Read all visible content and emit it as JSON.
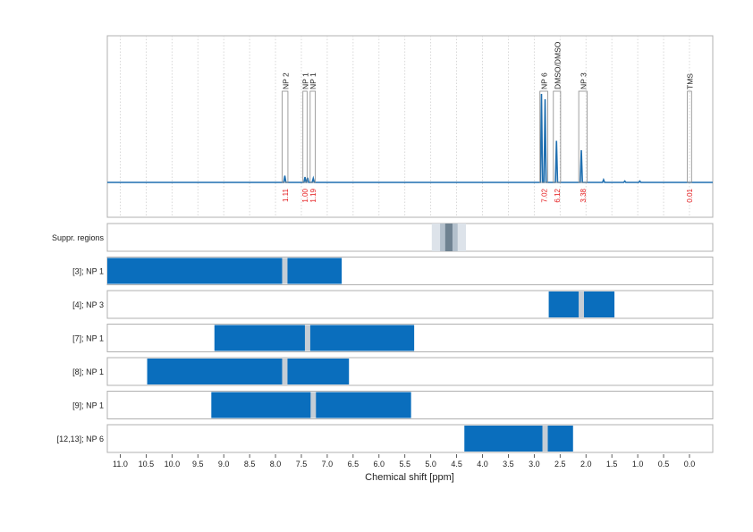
{
  "chart_data": {
    "type": "nmr-spectrum-with-range-tracks",
    "x_axis": {
      "label": "Chemical shift [ppm]",
      "lim": [
        11.25,
        -0.45
      ],
      "ticks": [
        11.0,
        10.5,
        10.0,
        9.5,
        9.0,
        8.5,
        8.0,
        7.5,
        7.0,
        6.5,
        6.0,
        5.5,
        5.0,
        4.5,
        4.0,
        3.5,
        3.0,
        2.5,
        2.0,
        1.5,
        1.0,
        0.5,
        0.0
      ],
      "tick_labels": [
        "11.0",
        "10.5",
        "10.0",
        "9.5",
        "9.0",
        "8.5",
        "8.0",
        "7.5",
        "7.0",
        "6.5",
        "6.0",
        "5.5",
        "5.0",
        "4.5",
        "4.0",
        "3.5",
        "3.0",
        "2.5",
        "2.0",
        "1.5",
        "1.0",
        "0.5",
        "0.0"
      ]
    },
    "spectrum": {
      "peaks": [
        {
          "ppm": 7.82,
          "height": 0.05
        },
        {
          "ppm": 7.43,
          "height": 0.04
        },
        {
          "ppm": 7.38,
          "height": 0.035
        },
        {
          "ppm": 7.27,
          "height": 0.03
        },
        {
          "ppm": 2.86,
          "height": 0.66
        },
        {
          "ppm": 2.79,
          "height": 0.62
        },
        {
          "ppm": 2.57,
          "height": 0.31
        },
        {
          "ppm": 2.09,
          "height": 0.24
        },
        {
          "ppm": 1.66,
          "height": 0.02
        },
        {
          "ppm": 1.25,
          "height": 0.01
        },
        {
          "ppm": 0.96,
          "height": 0.01
        }
      ],
      "annotations": [
        {
          "label": "NP 2",
          "from": 7.87,
          "to": 7.76,
          "height": 0.68,
          "integral": "1.11"
        },
        {
          "label": "NP 1",
          "from": 7.47,
          "to": 7.39,
          "height": 0.68,
          "integral": "1.00"
        },
        {
          "label": "NP 1",
          "from": 7.33,
          "to": 7.23,
          "height": 0.68,
          "integral": "1.19"
        },
        {
          "label": "NP 6",
          "from": 2.89,
          "to": 2.74,
          "height": 0.68,
          "integral": "7.02"
        },
        {
          "label": "DMSO/DMSO",
          "from": 2.63,
          "to": 2.49,
          "height": 0.68,
          "integral": "6.12"
        },
        {
          "label": "NP 3",
          "from": 2.14,
          "to": 1.98,
          "height": 0.68,
          "integral": "3.38"
        },
        {
          "label": "TMS",
          "from": 0.04,
          "to": -0.04,
          "height": 0.68,
          "integral": "0.01"
        }
      ]
    },
    "tracks": [
      {
        "label": "Suppr. regions",
        "bands": [
          {
            "from": 4.98,
            "to": 4.32,
            "color": "#dde3ea"
          },
          {
            "from": 4.82,
            "to": 4.48,
            "color": "#b3c0cc"
          },
          {
            "from": 4.72,
            "to": 4.58,
            "color": "#6f8291"
          }
        ],
        "ranges": []
      },
      {
        "label": "[3]; NP 1",
        "ranges": [
          {
            "from": 11.25,
            "to": 6.72
          }
        ],
        "gap": 7.82
      },
      {
        "label": "[4]; NP 3",
        "ranges": [
          {
            "from": 2.72,
            "to": 1.45
          }
        ],
        "gap": 2.09
      },
      {
        "label": "[7]; NP 1",
        "ranges": [
          {
            "from": 9.18,
            "to": 5.32
          }
        ],
        "gap": 7.38
      },
      {
        "label": "[8]; NP 1",
        "ranges": [
          {
            "from": 10.48,
            "to": 6.58
          }
        ],
        "gap": 7.82
      },
      {
        "label": "[9]; NP 1",
        "ranges": [
          {
            "from": 9.24,
            "to": 5.38
          }
        ],
        "gap": 7.27
      },
      {
        "label": "[12,13]; NP 6",
        "ranges": [
          {
            "from": 4.35,
            "to": 2.25
          }
        ],
        "gap": 2.79
      }
    ],
    "colors": {
      "spectrum": "#1f6fb0",
      "range": "#0a6ebd",
      "gap": "#c5cdd5",
      "integral": "#e41a1c",
      "frame": "#b0b0b0",
      "grid": "#cfcfcf",
      "annotation_box": "#8a8a8a"
    },
    "grid": true
  }
}
